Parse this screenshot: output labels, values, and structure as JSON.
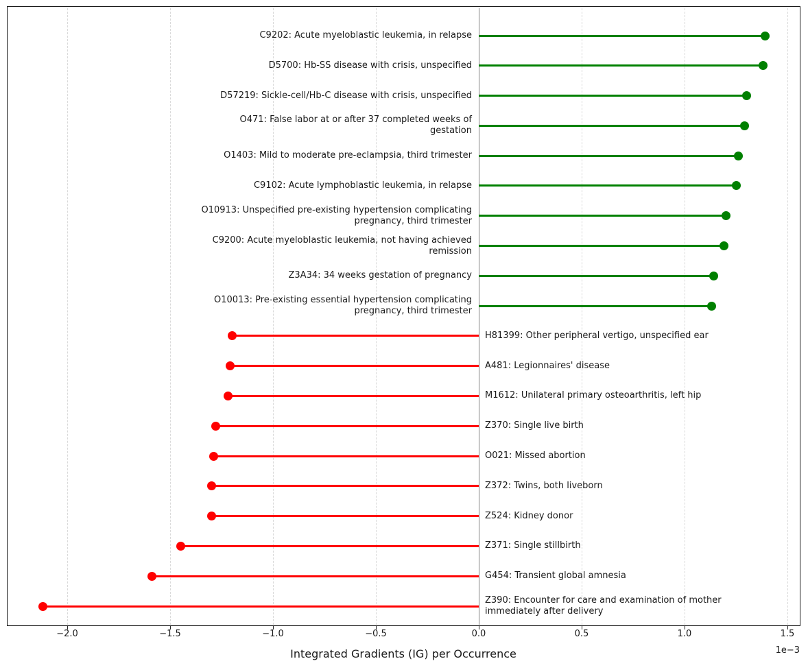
{
  "chart_data": {
    "type": "bar",
    "style": "horizontal-lollipop",
    "title": "",
    "xlabel": "Integrated Gradients (IG) per Occurrence",
    "ylabel": "",
    "x_scale_label": "1e−3",
    "values_in_units_of": "1e-3",
    "xlim": [
      -2.29,
      1.56
    ],
    "x_ticks": [
      -2.0,
      -1.5,
      -1.0,
      -0.5,
      0.0,
      0.5,
      1.0,
      1.5
    ],
    "x_tick_labels": [
      "−2.0",
      "−1.5",
      "−1.0",
      "−0.5",
      "0.0",
      "0.5",
      "1.0",
      "1.5"
    ],
    "grid": "vertical-dashed",
    "zero_line": true,
    "legend": "none",
    "colors": {
      "positive": "#008000",
      "negative": "#ff0000"
    },
    "items": [
      {
        "code": "C9202",
        "label_lines": [
          "C9202: Acute myeloblastic leukemia, in relapse"
        ],
        "value": 1.39
      },
      {
        "code": "D5700",
        "label_lines": [
          "D5700: Hb-SS disease with crisis, unspecified"
        ],
        "value": 1.38
      },
      {
        "code": "D57219",
        "label_lines": [
          "D57219: Sickle-cell/Hb-C disease with crisis, unspecified"
        ],
        "value": 1.3
      },
      {
        "code": "O471",
        "label_lines": [
          "O471: False labor at or after 37 completed weeks of",
          "gestation"
        ],
        "value": 1.29
      },
      {
        "code": "O1403",
        "label_lines": [
          "O1403: Mild to moderate pre-eclampsia, third trimester"
        ],
        "value": 1.26
      },
      {
        "code": "C9102",
        "label_lines": [
          "C9102: Acute lymphoblastic leukemia, in relapse"
        ],
        "value": 1.25
      },
      {
        "code": "O10913",
        "label_lines": [
          "O10913: Unspecified pre-existing hypertension complicating",
          "pregnancy, third trimester"
        ],
        "value": 1.2
      },
      {
        "code": "C9200",
        "label_lines": [
          "C9200: Acute myeloblastic leukemia, not having achieved",
          "remission"
        ],
        "value": 1.19
      },
      {
        "code": "Z3A34",
        "label_lines": [
          "Z3A34: 34 weeks gestation of pregnancy"
        ],
        "value": 1.14
      },
      {
        "code": "O10013",
        "label_lines": [
          "O10013: Pre-existing essential hypertension complicating",
          "pregnancy, third trimester"
        ],
        "value": 1.13
      },
      {
        "code": "H81399",
        "label_lines": [
          "H81399: Other peripheral vertigo, unspecified ear"
        ],
        "value": -1.2
      },
      {
        "code": "A481",
        "label_lines": [
          "A481: Legionnaires' disease"
        ],
        "value": -1.21
      },
      {
        "code": "M1612",
        "label_lines": [
          "M1612: Unilateral primary osteoarthritis, left hip"
        ],
        "value": -1.22
      },
      {
        "code": "Z370",
        "label_lines": [
          "Z370: Single live birth"
        ],
        "value": -1.28
      },
      {
        "code": "O021",
        "label_lines": [
          "O021: Missed abortion"
        ],
        "value": -1.29
      },
      {
        "code": "Z372",
        "label_lines": [
          "Z372: Twins, both liveborn"
        ],
        "value": -1.3
      },
      {
        "code": "Z524",
        "label_lines": [
          "Z524: Kidney donor"
        ],
        "value": -1.3
      },
      {
        "code": "Z371",
        "label_lines": [
          "Z371: Single stillbirth"
        ],
        "value": -1.45
      },
      {
        "code": "G454",
        "label_lines": [
          "G454: Transient global amnesia"
        ],
        "value": -1.59
      },
      {
        "code": "Z390",
        "label_lines": [
          "Z390: Encounter for care and examination of mother",
          "immediately after delivery"
        ],
        "value": -2.12
      }
    ]
  }
}
